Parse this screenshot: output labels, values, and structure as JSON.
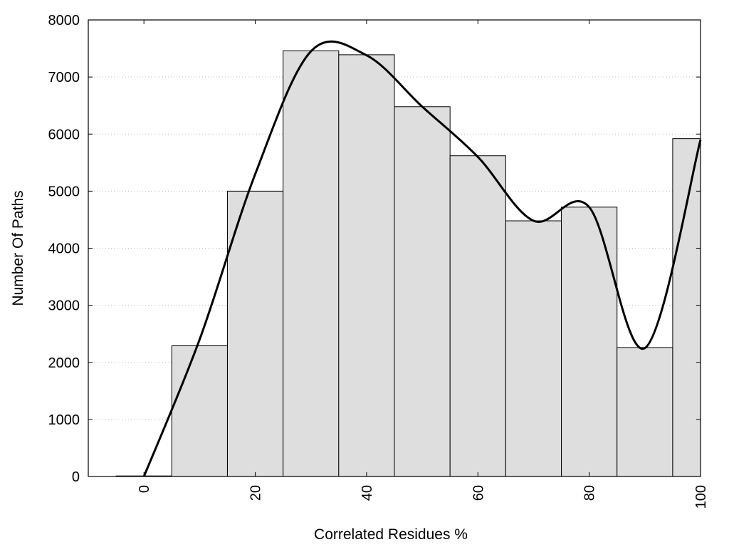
{
  "chart_data": {
    "type": "bar",
    "title": "",
    "xlabel": "Correlated Residues %",
    "ylabel": "Number Of Paths",
    "xlim": [
      -10,
      100
    ],
    "ylim": [
      0,
      8000
    ],
    "grid": "horizontal dotted",
    "x_ticks": [
      0,
      20,
      40,
      60,
      80,
      100
    ],
    "y_ticks": [
      0,
      1000,
      2000,
      3000,
      4000,
      5000,
      6000,
      7000,
      8000
    ],
    "bin_width": 10,
    "categories": [
      0,
      10,
      20,
      30,
      40,
      50,
      60,
      70,
      80,
      90,
      100
    ],
    "values": [
      10,
      2290,
      5000,
      7460,
      7390,
      6480,
      5620,
      4480,
      4720,
      2260,
      5920
    ],
    "curve": {
      "x": [
        0,
        10,
        20,
        30,
        40,
        50,
        60,
        70,
        80,
        90,
        100
      ],
      "y": [
        0,
        2400,
        5300,
        7450,
        7380,
        6480,
        5600,
        4480,
        4720,
        2250,
        5900
      ]
    },
    "colors": {
      "bar_fill": "#dedede",
      "bar_stroke": "#000000",
      "curve": "#000000",
      "grid": "#bbbbbb"
    }
  }
}
